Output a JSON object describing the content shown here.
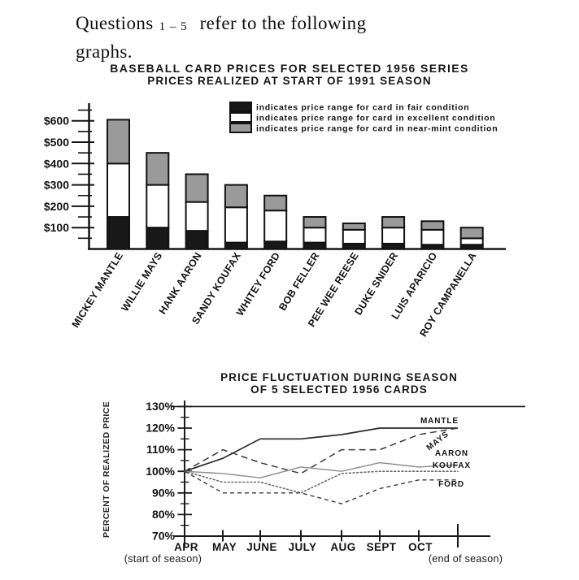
{
  "heading": {
    "prefix": "Questions",
    "range": "1 – 5",
    "suffix": "refer to the following",
    "line2": "graphs."
  },
  "chart_data": [
    {
      "type": "bar",
      "stacked": true,
      "title": "BASEBALL CARD PRICES FOR SELECTED 1956 SERIES",
      "subtitle": "PRICES REALIZED AT START OF 1991 SEASON",
      "categories": [
        "MICKEY MANTLE",
        "WILLIE MAYS",
        "HANK AARON",
        "SANDY KOUFAX",
        "WHITEY FORD",
        "BOB FELLER",
        "PEE WEE REESE",
        "DUKE SNIDER",
        "LUIS APARICIO",
        "ROY CAMPANELLA"
      ],
      "series": [
        {
          "name": "fair",
          "color": "#181818",
          "legend_label": "indicates price range for card in fair condition",
          "segment_heights": [
            150,
            100,
            85,
            30,
            35,
            30,
            25,
            25,
            20,
            20
          ]
        },
        {
          "name": "excellent",
          "color": "#ffffff",
          "legend_label": "indicates price range for card in excellent condition",
          "segment_heights": [
            250,
            200,
            135,
            165,
            145,
            70,
            65,
            75,
            70,
            30
          ]
        },
        {
          "name": "near-mint",
          "color": "#9a9a9a",
          "legend_label": "indicates price range for card in near-mint condition",
          "segment_heights": [
            205,
            150,
            130,
            105,
            70,
            50,
            30,
            50,
            40,
            50
          ]
        }
      ],
      "stack_tops": {
        "fair": [
          150,
          100,
          85,
          30,
          35,
          30,
          25,
          25,
          20,
          20
        ],
        "excellent": [
          400,
          300,
          220,
          195,
          180,
          100,
          90,
          100,
          90,
          50
        ],
        "near_mint": [
          605,
          450,
          350,
          300,
          250,
          150,
          120,
          150,
          130,
          100
        ]
      },
      "y_tick_values": [
        100,
        200,
        300,
        400,
        500,
        600
      ],
      "y_tick_labels": [
        "$100",
        "$200",
        "$300",
        "$400",
        "$500",
        "$600"
      ],
      "y_minor_tick_values": [
        50,
        150,
        250,
        350,
        450,
        550,
        650
      ],
      "ylim": [
        0,
        650
      ],
      "legend_position": "top-right",
      "grid": false
    },
    {
      "type": "line",
      "title": "PRICE FLUCTUATION DURING SEASON",
      "subtitle": "OF 5 SELECTED 1956 CARDS",
      "ylabel": "PERCENT OF REALIZED PRICE",
      "x_labels": [
        "APR",
        "MAY",
        "JUNE",
        "JULY",
        "AUG",
        "SEPT",
        "OCT"
      ],
      "x_note_start": "(start of season)",
      "x_note_end": "(end of season)",
      "x_points": [
        "APR",
        "MAY",
        "JUNE",
        "JULY",
        "AUG",
        "SEPT",
        "OCT",
        "END"
      ],
      "y_tick_values": [
        70,
        80,
        90,
        100,
        110,
        120,
        130
      ],
      "y_tick_labels": [
        "70%",
        "80%",
        "90%",
        "100%",
        "110%",
        "120%",
        "130%"
      ],
      "y_minor_tick_values": [
        75,
        85,
        95,
        105,
        115,
        125
      ],
      "ylim": [
        70,
        130
      ],
      "grid": false,
      "series": [
        {
          "name": "MANTLE",
          "style": "solid",
          "color": "#2a2a2a",
          "values": [
            100,
            106,
            115,
            115,
            117,
            120,
            120,
            120
          ]
        },
        {
          "name": "MAYS",
          "style": "dashed",
          "color": "#3a3a3a",
          "values": [
            100,
            110,
            104,
            99,
            110,
            110,
            117,
            120
          ]
        },
        {
          "name": "AARON",
          "style": "solid",
          "color": "#8a8a8a",
          "values": [
            100,
            99,
            97,
            102,
            100,
            104,
            102,
            103
          ]
        },
        {
          "name": "KOUFAX",
          "style": "dotted",
          "color": "#6a6a6a",
          "values": [
            100,
            95,
            95,
            90,
            99,
            100,
            100,
            100
          ]
        },
        {
          "name": "FORD",
          "style": "short-dash",
          "color": "#3a3a3a",
          "values": [
            100,
            90,
            90,
            90,
            85,
            92,
            96,
            96
          ]
        }
      ]
    }
  ]
}
